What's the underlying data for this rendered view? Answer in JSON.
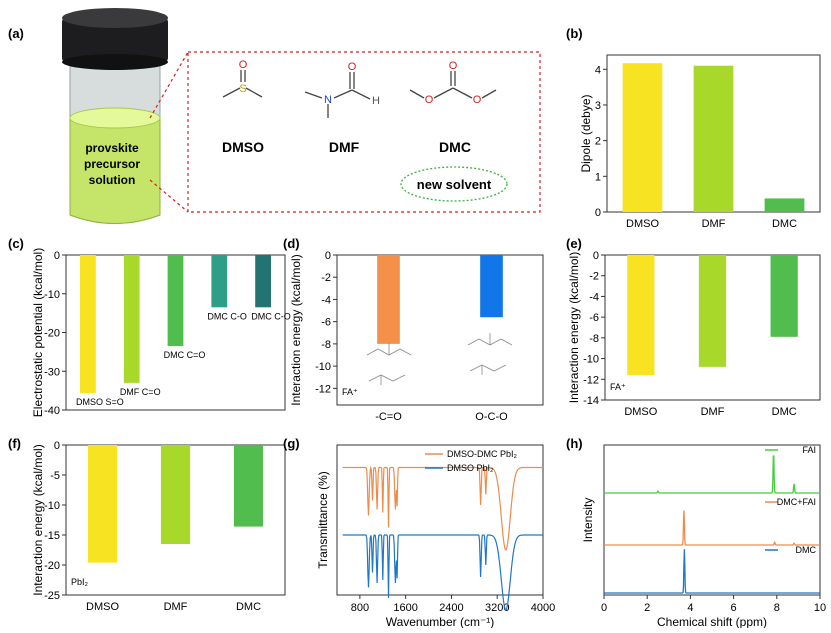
{
  "panels": {
    "a": {
      "label": "(a)",
      "vial": [
        "provskite",
        "precursor",
        "solution"
      ],
      "molecules": [
        "DMSO",
        "DMF",
        "DMC"
      ],
      "atoms": {
        "S": "S",
        "O": "O",
        "N": "N",
        "H": "H"
      },
      "new_solvent": "new solvent"
    },
    "c_label": "(c)",
    "d_label": "(d)",
    "e_label": "(e)",
    "f_label": "(f)",
    "g_label": "(g)",
    "h_label": "(h)"
  },
  "colors": {
    "dmso": "#f7e322",
    "dmf": "#a8d92a",
    "dmc": "#52bd4f",
    "dmc_co": "#2f9e86",
    "dmc_co2": "#247373",
    "d_co": "#f5904a",
    "d_oco": "#1177e8",
    "g_top": "#f08a4a",
    "g_bot": "#1f77c8",
    "h_fai": "#3fd13a",
    "h_mix": "#f08a4a",
    "h_dmc": "#1f77c8",
    "frame_red": "#d42020",
    "oval_green": "#3fae3f"
  },
  "chart_data": [
    {
      "id": "b",
      "type": "bar",
      "panel_label": "(b)",
      "categories": [
        "DMSO",
        "DMF",
        "DMC"
      ],
      "values": [
        4.17,
        4.1,
        0.38
      ],
      "ylabel": "Dipole (debye)",
      "xlabel": "",
      "ylim": [
        0,
        4.4
      ],
      "yticks": [
        "0",
        "1",
        "2",
        "3",
        "4"
      ]
    },
    {
      "id": "c",
      "type": "bar",
      "panel_label": "(c)",
      "categories": [
        "DMSO S=O",
        "DMF C=O",
        "DMC C=O",
        "DMC C-O",
        "DMC C-O"
      ],
      "values": [
        -35.6,
        -33,
        -23.5,
        -13.5,
        -13.5
      ],
      "ylabel": "Electrostatic potential (kcal/mol)",
      "ylim": [
        -40,
        0
      ],
      "yticks": [
        "0",
        "-10",
        "-20",
        "-30",
        "-40"
      ]
    },
    {
      "id": "d",
      "type": "bar",
      "panel_label": "(d)",
      "categories": [
        "-C=O",
        "O-C-O"
      ],
      "values": [
        -8,
        -5.6
      ],
      "ylabel": "Interaction energy (kcal/mol)",
      "annotation": "FA⁺",
      "ylim": [
        -13.5,
        0
      ],
      "yticks": [
        "0",
        "-2",
        "-4",
        "-6",
        "-8",
        "-10",
        "-12"
      ]
    },
    {
      "id": "e",
      "type": "bar",
      "panel_label": "(e)",
      "categories": [
        "DMSO",
        "DMF",
        "DMC"
      ],
      "values": [
        -11.6,
        -10.8,
        -7.9
      ],
      "ylabel": "Interaction energy (kcal/mol)",
      "annotation": "FA⁺",
      "ylim": [
        -14,
        0
      ],
      "yticks": [
        "0",
        "-2",
        "-4",
        "-6",
        "-8",
        "-10",
        "-12",
        "-14"
      ]
    },
    {
      "id": "f",
      "type": "bar",
      "panel_label": "(f)",
      "categories": [
        "DMSO",
        "DMF",
        "DMC"
      ],
      "values": [
        -19.6,
        -16.5,
        -13.6
      ],
      "ylabel": "Interaction energy (kcal/mol)",
      "annotation": "PbI₂",
      "ylim": [
        -25,
        0
      ],
      "yticks": [
        "0",
        "-5",
        "-10",
        "-15",
        "-20",
        "-25"
      ]
    },
    {
      "id": "g",
      "type": "line",
      "panel_label": "(g)",
      "xlabel": "Wavenumber (cm⁻¹)",
      "ylabel": "Transmittance (%)",
      "xlim": [
        400,
        4000
      ],
      "xticks": [
        "800",
        "1600",
        "2400",
        "3200",
        "4000"
      ],
      "legend_position": "top-right",
      "series": [
        {
          "name": "DMSO-DMC PbI₂",
          "baseline": 0.85,
          "peaks": [
            [
              950,
              0.32,
              18
            ],
            [
              1020,
              0.22,
              12
            ],
            [
              1100,
              0.28,
              14
            ],
            [
              1200,
              0.3,
              10
            ],
            [
              1300,
              0.4,
              10
            ],
            [
              1420,
              0.28,
              16
            ],
            [
              1450,
              0.25,
              10
            ],
            [
              2910,
              0.25,
              14
            ],
            [
              3000,
              0.18,
              12
            ],
            [
              3350,
              0.55,
              110
            ]
          ]
        },
        {
          "name": "DMSO PbI₂",
          "baseline": 0.4,
          "peaks": [
            [
              950,
              0.35,
              18
            ],
            [
              1020,
              0.25,
              12
            ],
            [
              1100,
              0.32,
              14
            ],
            [
              1200,
              0.3,
              10
            ],
            [
              1300,
              0.42,
              10
            ],
            [
              1420,
              0.32,
              16
            ],
            [
              1450,
              0.28,
              10
            ],
            [
              2910,
              0.28,
              14
            ],
            [
              3000,
              0.2,
              12
            ],
            [
              3350,
              0.5,
              110
            ]
          ]
        }
      ]
    },
    {
      "id": "h",
      "type": "line",
      "panel_label": "(h)",
      "xlabel": "Chemical shift (ppm)",
      "ylabel": "Intensity",
      "xlim": [
        0,
        10
      ],
      "xticks": [
        "0",
        "2",
        "4",
        "6",
        "8",
        "10"
      ],
      "legend_position": "top-right",
      "series": [
        {
          "name": "FAI",
          "peaks": [
            [
              2.5,
              0.04
            ],
            [
              7.85,
              0.9
            ],
            [
              8.8,
              0.2
            ]
          ]
        },
        {
          "name": "DMC+FAI",
          "peaks": [
            [
              3.7,
              0.75
            ],
            [
              7.9,
              0.06
            ],
            [
              8.8,
              0.04
            ]
          ]
        },
        {
          "name": "DMC",
          "peaks": [
            [
              3.72,
              0.95
            ]
          ]
        }
      ]
    }
  ]
}
